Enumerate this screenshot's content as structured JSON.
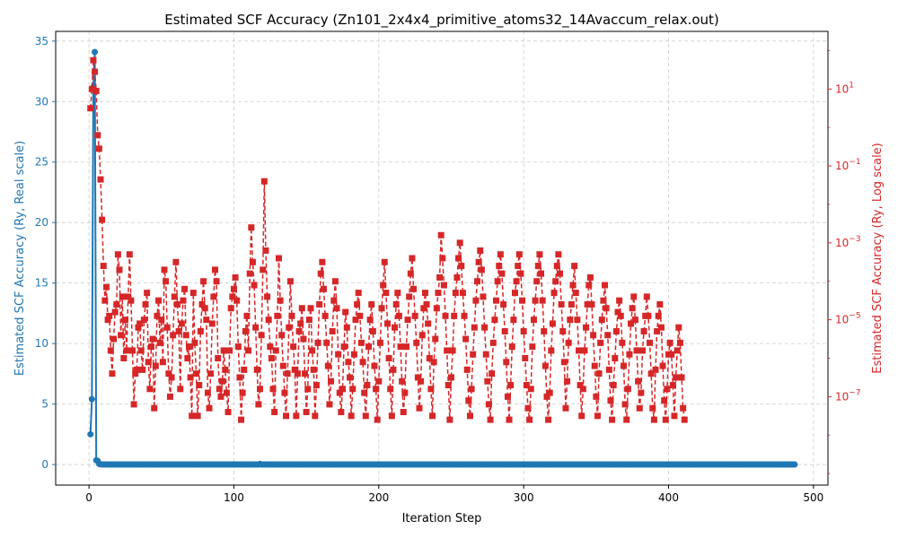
{
  "chart_data": {
    "type": "line",
    "title": "Estimated SCF Accuracy (Zn101_2x4x4_primitive_atoms32_14Avaccum_relax.out)",
    "xlabel": "Iteration Step",
    "ylabel_left": "Estimated SCF Accuracy (Ry, Real scale)",
    "ylabel_right": "Estimated SCF Accuracy (Ry, Log scale)",
    "xlim": [
      -23,
      510
    ],
    "ylim_left": [
      -1.7,
      35.8
    ],
    "ylim_right_log10": [
      -9.3,
      2.5
    ],
    "x_ticks": [
      "0",
      "100",
      "200",
      "300",
      "400",
      "500"
    ],
    "y_ticks_left": [
      "0",
      "5",
      "10",
      "15",
      "20",
      "25",
      "30",
      "35"
    ],
    "y_ticks_right": [
      "10^{-7}",
      "10^{-5}",
      "10^{-3}",
      "10^{-1}",
      "10^{1}"
    ],
    "grid": true,
    "colors": {
      "left": "#1f77b4",
      "right": "#d62728"
    },
    "series": [
      {
        "axis": "left",
        "scale": "linear",
        "style": "solid",
        "marker": "circle",
        "points": [
          [
            1,
            2.5
          ],
          [
            2,
            5.4
          ],
          [
            3,
            31.2
          ],
          [
            4,
            34.1
          ],
          [
            5,
            0.35
          ],
          [
            6,
            0.3
          ],
          [
            7,
            0.05
          ],
          [
            8,
            0.02
          ],
          [
            118,
            0.05
          ],
          [
            487,
            0.0
          ]
        ]
      },
      {
        "axis": "right",
        "scale": "log",
        "style": "dashed",
        "marker": "square",
        "log10_values": [
          0.5,
          1.0,
          1.75,
          1.45,
          0.95,
          -0.2,
          -0.55,
          -1.35,
          -2.4,
          -3.6,
          -4.5,
          -4.15,
          -5.0,
          -4.9,
          -5.8,
          -6.4,
          -5.5,
          -4.8,
          -4.6,
          -3.3,
          -3.7,
          -5.4,
          -4.4,
          -6.0,
          -5.0,
          -5.8,
          -4.4,
          -3.3,
          -4.5,
          -5.8,
          -7.2,
          -6.4,
          -6.3,
          -5.2,
          -5.1,
          -5.8,
          -6.3,
          -5.0,
          -4.6,
          -4.3,
          -6.1,
          -6.8,
          -5.7,
          -5.5,
          -7.3,
          -6.2,
          -4.9,
          -4.5,
          -5.6,
          -5.0,
          -6.1,
          -3.7,
          -4.0,
          -5.2,
          -6.4,
          -7.0,
          -6.5,
          -5.4,
          -4.4,
          -3.5,
          -4.6,
          -5.3,
          -6.8,
          -5.1,
          -4.5,
          -4.2,
          -5.4,
          -6.0,
          -5.7,
          -6.5,
          -7.5,
          -4.3,
          -5.6,
          -6.4,
          -7.5,
          -6.7,
          -5.3,
          -4.6,
          -4.0,
          -4.7,
          -5.0,
          -6.9,
          -7.3,
          -6.4,
          -5.1,
          -4.4,
          -3.7,
          -4.0,
          -6.0,
          -6.8,
          -7.0,
          -6.6,
          -5.8,
          -6.3,
          -6.9,
          -7.4,
          -5.8,
          -4.7,
          -4.4,
          -4.2,
          -3.9,
          -4.5,
          -5.7,
          -6.5,
          -7.6,
          -6.9,
          -6.3,
          -5.3,
          -4.9,
          -5.8,
          -3.8,
          -2.6,
          -3.5,
          -4.1,
          -5.2,
          -6.3,
          -7.2,
          -6.8,
          -5.4,
          -3.7,
          -1.4,
          -3.2,
          -4.4,
          -5.0,
          -5.7,
          -6.0,
          -6.8,
          -7.4,
          -5.8,
          -4.9,
          -3.4,
          -4.5,
          -5.4,
          -6.2,
          -6.9,
          -7.5,
          -6.4,
          -5.2,
          -4.0,
          -4.9,
          -5.7,
          -6.3,
          -7.5,
          -6.4,
          -5.3,
          -5.1,
          -4.7,
          -5.5,
          -6.4,
          -7.4,
          -6.8,
          -5.0,
          -4.7,
          -5.8,
          -6.3,
          -7.5,
          -6.7,
          -5.6,
          -4.6,
          -3.8,
          -3.5,
          -4.2,
          -4.9,
          -5.6,
          -6.2,
          -7.2,
          -6.6,
          -5.3,
          -4.5,
          -4.0,
          -4.7,
          -5.9,
          -6.9,
          -7.4,
          -6.8,
          -5.7,
          -4.8,
          -5.2,
          -6.1,
          -6.5,
          -7.5,
          -6.8,
          -5.9,
          -5.0,
          -4.6,
          -4.3,
          -4.9,
          -5.6,
          -6.1,
          -6.9,
          -7.5,
          -6.7,
          -5.7,
          -5.0,
          -4.6,
          -5.3,
          -6.2,
          -6.8,
          -7.6,
          -6.6,
          -5.6,
          -4.7,
          -4.1,
          -3.5,
          -4.3,
          -5.1,
          -6.0,
          -6.8,
          -7.5,
          -6.3,
          -5.2,
          -4.6,
          -4.3,
          -4.9,
          -5.7,
          -6.6,
          -7.4,
          -6.9,
          -5.7,
          -5.0,
          -4.4,
          -3.8,
          -3.4,
          -4.2,
          -4.9,
          -5.6,
          -6.5,
          -7.3,
          -6.6,
          -5.4,
          -4.7,
          -4.3,
          -4.6,
          -5.1,
          -6.0,
          -6.8,
          -7.5,
          -6.1,
          -5.5,
          -4.7,
          -4.3,
          -3.9,
          -2.8,
          -3.4,
          -4.1,
          -4.9,
          -5.8,
          -6.7,
          -7.6,
          -6.5,
          -5.8,
          -4.9,
          -4.3,
          -3.9,
          -3.4,
          -3.0,
          -3.6,
          -4.3,
          -4.9,
          -5.5,
          -6.3,
          -7.1,
          -7.5,
          -6.8,
          -5.9,
          -5.2,
          -4.5,
          -4.0,
          -3.5,
          -3.2,
          -3.7,
          -4.4,
          -5.2,
          -5.9,
          -6.6,
          -7.2,
          -7.6,
          -6.4,
          -5.6,
          -5.0,
          -4.5,
          -4.0,
          -3.6,
          -3.3,
          -3.8,
          -4.6,
          -5.3,
          -6.1,
          -7.0,
          -7.6,
          -6.7,
          -5.7,
          -5.0,
          -4.3,
          -4.0,
          -3.6,
          -3.3,
          -3.8,
          -4.5,
          -5.3,
          -6.0,
          -6.7,
          -7.3,
          -7.6,
          -6.8,
          -5.7,
          -5.0,
          -4.5,
          -4.0,
          -3.6,
          -3.3,
          -3.8,
          -4.5,
          -5.3,
          -6.2,
          -7.0,
          -7.6,
          -6.9,
          -5.8,
          -5.1,
          -4.3,
          -4.0,
          -3.6,
          -3.3,
          -3.8,
          -4.6,
          -5.3,
          -6.1,
          -7.3,
          -6.6,
          -5.6,
          -5.0,
          -4.6,
          -4.1,
          -3.6,
          -4.3,
          -5.0,
          -5.8,
          -6.7,
          -7.5,
          -6.8,
          -5.8,
          -5.2,
          -4.6,
          -4.1,
          -3.9,
          -4.6,
          -5.4,
          -6.2,
          -7.0,
          -7.5,
          -6.4,
          -5.6,
          -5.0,
          -4.5,
          -4.1,
          -4.7,
          -5.4,
          -6.3,
          -7.1,
          -7.6,
          -6.7,
          -6.0,
          -5.3,
          -4.8,
          -4.5,
          -4.9,
          -5.6,
          -6.2,
          -7.2,
          -7.6,
          -6.8,
          -5.9,
          -5.1,
          -4.7,
          -4.4,
          -5.0,
          -5.8,
          -6.6,
          -7.3,
          -6.9,
          -5.8,
          -5.3,
          -4.9,
          -4.4,
          -4.9,
          -5.6,
          -6.4,
          -7.3,
          -7.6,
          -6.3,
          -5.3,
          -4.9,
          -4.6,
          -5.2,
          -6.2,
          -7.1,
          -7.6,
          -6.8,
          -5.9,
          -5.6,
          -5.9,
          -6.7,
          -7.5,
          -6.5,
          -5.8,
          -5.2,
          -5.6,
          -6.5,
          -7.3,
          -7.6
        ]
      }
    ]
  }
}
